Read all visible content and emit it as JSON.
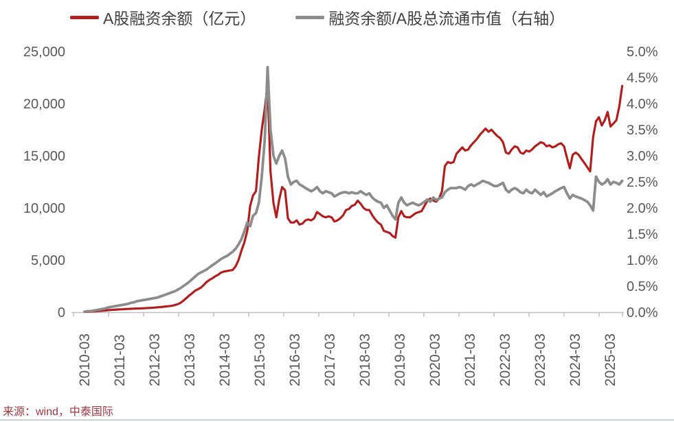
{
  "page": {
    "source": "来源：wind，中泰国际"
  },
  "colors": {
    "red_series": "#b21e1e",
    "gray_series": "#8c8c8c",
    "axis_text": "#595959",
    "legend_text": "#404040",
    "axis_line": "#bfbfbf",
    "source_text": "#9d3642"
  },
  "chart_data": {
    "type": "line",
    "title": "",
    "grid": false,
    "legend_position": "top",
    "x": {
      "start": "2010-03",
      "interval": "monthly",
      "tick_labels": [
        "2010-03",
        "2011-03",
        "2012-03",
        "2013-03",
        "2014-03",
        "2015-03",
        "2016-03",
        "2017-03",
        "2018-03",
        "2019-03",
        "2020-03",
        "2021-03",
        "2022-03",
        "2023-03",
        "2024-03",
        "2025-03"
      ]
    },
    "left_axis": {
      "min": 0,
      "max": 25000,
      "tick_step": 5000,
      "tick_labels": [
        "0",
        "5,000",
        "10,000",
        "15,000",
        "20,000",
        "25,000"
      ]
    },
    "right_axis": {
      "min": 0,
      "max": 5,
      "tick_step": 0.5,
      "tick_labels": [
        "0.0%",
        "0.5%",
        "1.0%",
        "1.5%",
        "2.0%",
        "2.5%",
        "3.0%",
        "3.5%",
        "4.0%",
        "4.5%",
        "5.0%"
      ]
    },
    "series": [
      {
        "name": "A股融资余额（亿元）",
        "axis": "left",
        "color": "#b21e1e",
        "values": [
          30,
          45,
          60,
          80,
          100,
          120,
          140,
          165,
          190,
          220,
          240,
          255,
          270,
          285,
          300,
          315,
          330,
          345,
          355,
          365,
          375,
          390,
          405,
          420,
          440,
          465,
          490,
          520,
          550,
          580,
          615,
          680,
          760,
          895,
          1100,
          1350,
          1600,
          1800,
          2050,
          2200,
          2350,
          2600,
          2900,
          3100,
          3250,
          3450,
          3600,
          3800,
          3900,
          3950,
          4000,
          4050,
          4400,
          5000,
          5900,
          6700,
          7800,
          10200,
          11200,
          11600,
          14900,
          17500,
          19500,
          21800,
          13500,
          10500,
          9100,
          10800,
          12000,
          11700,
          9000,
          8600,
          8600,
          8800,
          8400,
          8500,
          8800,
          8900,
          8800,
          9000,
          9600,
          9400,
          9200,
          9100,
          9200,
          9100,
          8700,
          8800,
          9000,
          9300,
          9800,
          9900,
          10200,
          10300,
          10700,
          10400,
          10000,
          9800,
          9800,
          9300,
          8900,
          8600,
          8400,
          7800,
          7700,
          7600,
          7300,
          7150,
          9100,
          9700,
          9200,
          9100,
          9100,
          9300,
          9500,
          9600,
          9700,
          10200,
          10700,
          10900,
          10700,
          10600,
          10900,
          11600,
          14000,
          14400,
          14300,
          14400,
          15200,
          15500,
          15800,
          15500,
          15600,
          16000,
          16300,
          16600,
          17000,
          17300,
          17600,
          17300,
          17500,
          17200,
          16900,
          16700,
          16300,
          15300,
          15200,
          15600,
          15900,
          15800,
          15300,
          15200,
          15500,
          15400,
          15600,
          15900,
          16100,
          16300,
          16200,
          15900,
          16000,
          15800,
          15900,
          16100,
          16200,
          15900,
          14800,
          13800,
          15100,
          15300,
          15100,
          14700,
          14300,
          13900,
          13500,
          16800,
          18300,
          18700,
          17900,
          18400,
          19200,
          17800,
          18100,
          18400,
          19700,
          21700
        ]
      },
      {
        "name": "融资余额/A股总流通市值（右轴）",
        "axis": "right",
        "color": "#8c8c8c",
        "values": [
          0.01,
          0.02,
          0.02,
          0.03,
          0.04,
          0.05,
          0.06,
          0.07,
          0.09,
          0.1,
          0.11,
          0.12,
          0.13,
          0.14,
          0.15,
          0.16,
          0.18,
          0.19,
          0.21,
          0.22,
          0.23,
          0.24,
          0.25,
          0.26,
          0.27,
          0.28,
          0.3,
          0.32,
          0.34,
          0.36,
          0.38,
          0.4,
          0.43,
          0.46,
          0.5,
          0.54,
          0.58,
          0.63,
          0.68,
          0.73,
          0.76,
          0.79,
          0.82,
          0.86,
          0.9,
          0.94,
          0.98,
          1.02,
          1.05,
          1.08,
          1.12,
          1.16,
          1.22,
          1.3,
          1.4,
          1.55,
          1.72,
          1.65,
          1.85,
          1.9,
          2.1,
          2.6,
          3.3,
          4.7,
          3.5,
          3.0,
          2.85,
          3.0,
          3.1,
          2.95,
          2.6,
          2.45,
          2.5,
          2.52,
          2.45,
          2.42,
          2.38,
          2.35,
          2.32,
          2.35,
          2.4,
          2.32,
          2.28,
          2.32,
          2.3,
          2.28,
          2.22,
          2.25,
          2.28,
          2.3,
          2.3,
          2.28,
          2.3,
          2.28,
          2.28,
          2.32,
          2.28,
          2.25,
          2.28,
          2.2,
          2.15,
          2.12,
          2.1,
          2.0,
          2.05,
          1.95,
          1.85,
          1.78,
          2.1,
          2.2,
          2.1,
          2.05,
          2.08,
          2.1,
          2.07,
          2.05,
          2.08,
          2.12,
          2.16,
          2.12,
          2.2,
          2.15,
          2.18,
          2.2,
          2.3,
          2.35,
          2.38,
          2.38,
          2.38,
          2.4,
          2.38,
          2.35,
          2.42,
          2.45,
          2.42,
          2.45,
          2.48,
          2.52,
          2.5,
          2.48,
          2.45,
          2.42,
          2.42,
          2.45,
          2.48,
          2.35,
          2.3,
          2.35,
          2.38,
          2.35,
          2.3,
          2.28,
          2.35,
          2.3,
          2.28,
          2.35,
          2.3,
          2.25,
          2.3,
          2.22,
          2.25,
          2.28,
          2.32,
          2.35,
          2.38,
          2.4,
          2.28,
          2.18,
          2.25,
          2.22,
          2.2,
          2.18,
          2.15,
          2.12,
          2.05,
          1.95,
          2.6,
          2.5,
          2.45,
          2.48,
          2.55,
          2.45,
          2.5,
          2.48,
          2.45,
          2.52
        ]
      }
    ]
  }
}
